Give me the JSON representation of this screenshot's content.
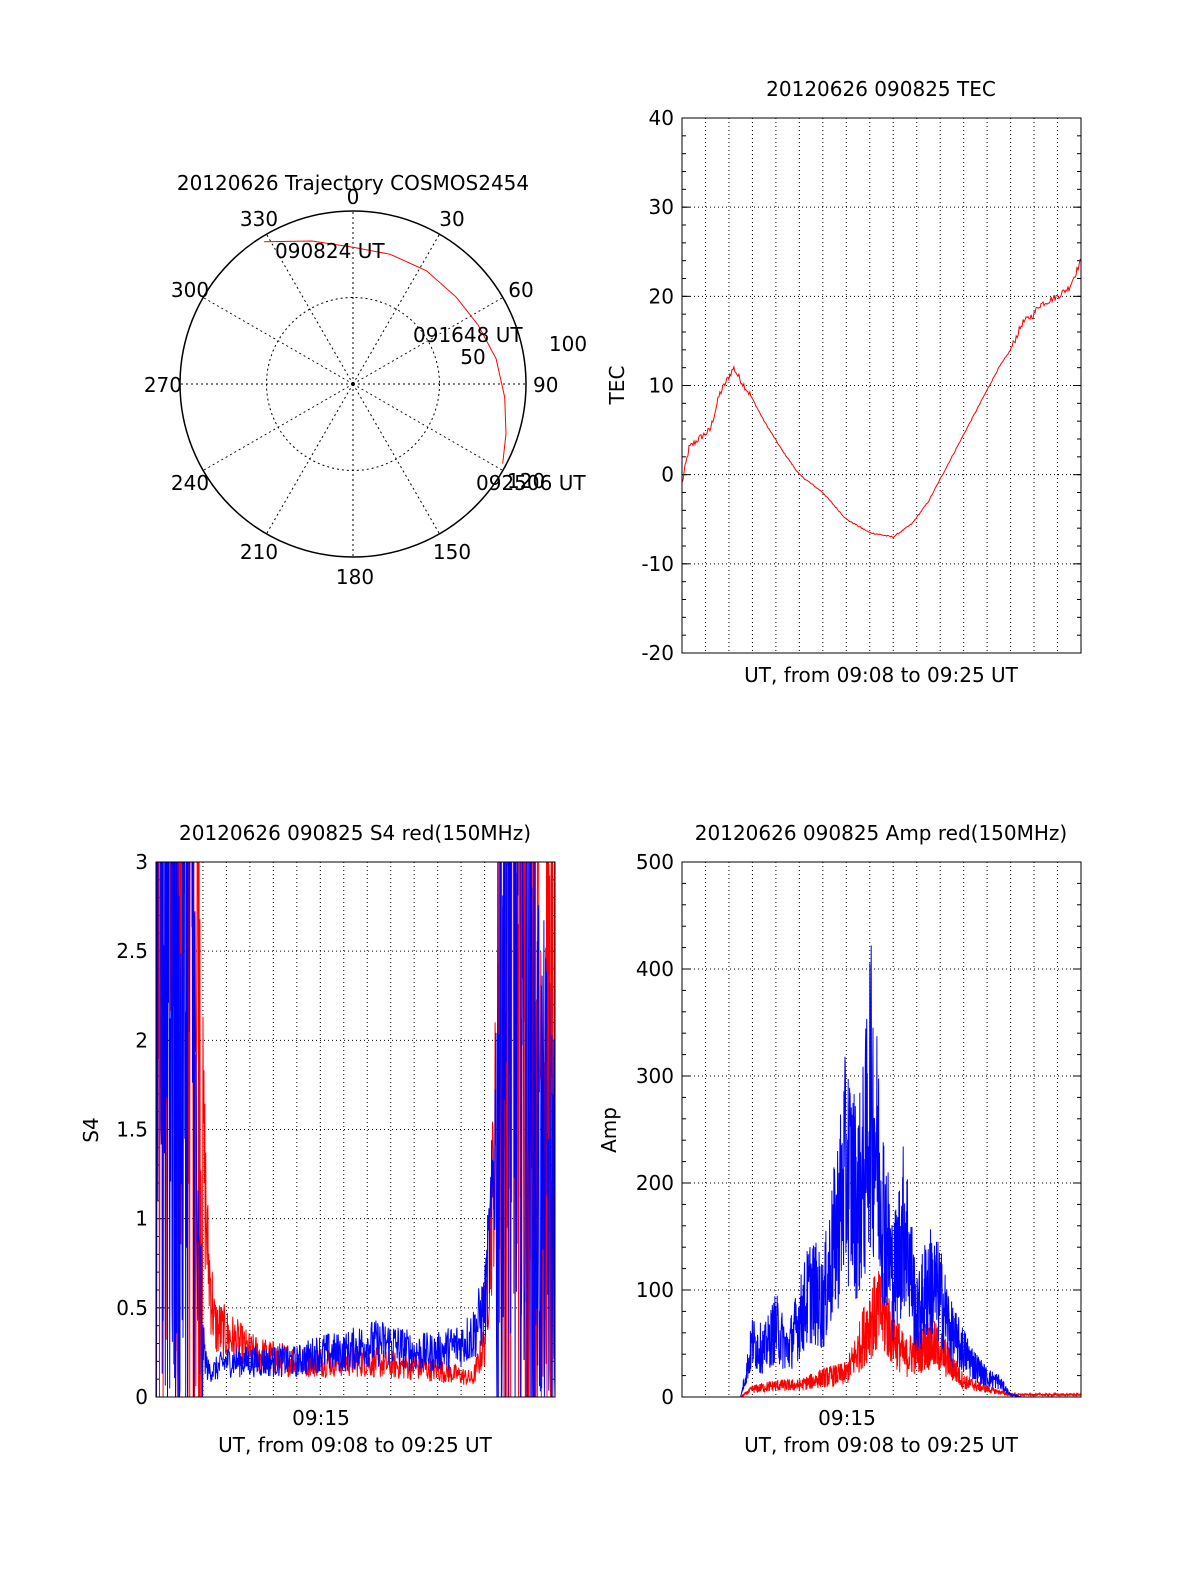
{
  "chart_data": [
    {
      "type": "polar",
      "title": "20120626 Trajectory COSMOS2454",
      "azimuth_labels": [
        "0",
        "30",
        "60",
        "90",
        "150",
        "180",
        "210",
        "240",
        "270",
        "300",
        "330"
      ],
      "radius_labels": [
        "50",
        "100"
      ],
      "rlim": [
        0,
        100
      ],
      "grid": true,
      "series": [
        {
          "color": "#ff0000",
          "points": [
            {
              "az": -32,
              "r": 97
            },
            {
              "az": -16,
              "r": 86
            },
            {
              "az": 0,
              "r": 79
            },
            {
              "az": 16,
              "r": 78
            },
            {
              "az": 33,
              "r": 78
            },
            {
              "az": 50,
              "r": 78
            },
            {
              "az": 65,
              "r": 80
            },
            {
              "az": 80,
              "r": 84
            },
            {
              "az": 95,
              "r": 88
            },
            {
              "az": 108,
              "r": 93
            },
            {
              "az": 118,
              "r": 98
            }
          ]
        }
      ],
      "annotations": [
        "090824 UT",
        "091648 UT",
        "092506 UT",
        "120"
      ]
    },
    {
      "type": "line",
      "title": "20120626 090825 TEC",
      "xlabel": "UT, from 09:08 to 09:25 UT",
      "ylabel": "TEC",
      "ylim": [
        -20,
        40
      ],
      "yticks": [
        "-20",
        "-10",
        "0",
        "10",
        "20",
        "30",
        "40"
      ],
      "grid": true,
      "series": [
        {
          "color": "#ff0000",
          "x": [
            0,
            0.3,
            0.7,
            1.2,
            1.6,
            2.0,
            2.2,
            2.4,
            2.9,
            3.5,
            4.2,
            5.0,
            6.0,
            7.0,
            8.0,
            9.0,
            9.8,
            10.5,
            11.0,
            11.5,
            12.0,
            12.5,
            13.0,
            13.5,
            14.0,
            14.5,
            15.0,
            15.2,
            15.6,
            16.0,
            16.5,
            17.0
          ],
          "y": [
            -1,
            3,
            4,
            5,
            9,
            11,
            12,
            11,
            9,
            6,
            3,
            0,
            -2,
            -5,
            -6.5,
            -7,
            -5.5,
            -3,
            -0.5,
            2,
            4.5,
            7,
            9.5,
            12,
            14,
            17,
            18,
            19,
            19.5,
            20,
            21,
            24
          ]
        }
      ]
    },
    {
      "type": "line",
      "title": "20120626 090825 S4 red(150MHz)",
      "xlabel": "UT, from 09:08 to 09:25 UT",
      "ylabel": "S4",
      "ylim": [
        0,
        3
      ],
      "yticks": [
        "0",
        "0.5",
        "1",
        "1.5",
        "2",
        "2.5",
        "3"
      ],
      "xtick_labels": [
        "09:15"
      ],
      "grid": true,
      "series": [
        {
          "color": "#ff0000",
          "x": [
            0,
            0.5,
            1.0,
            1.5,
            1.8,
            2.0,
            2.2,
            2.5,
            3.0,
            3.5,
            4.0,
            5.0,
            6.0,
            7.0,
            8.0,
            9.0,
            10.0,
            11.0,
            12.0,
            13.0,
            13.5,
            14.0,
            14.3,
            14.6,
            15.0,
            15.5,
            16.0,
            16.5,
            17.0
          ],
          "y": [
            3,
            3,
            3,
            3,
            2.5,
            1.5,
            0.8,
            0.4,
            0.35,
            0.3,
            0.25,
            0.22,
            0.2,
            0.2,
            0.2,
            0.2,
            0.18,
            0.17,
            0.15,
            0.12,
            0.1,
            0.3,
            1.0,
            2.0,
            2.8,
            3,
            2.6,
            2.0,
            1.5
          ]
        },
        {
          "color": "#0000ff",
          "x": [
            0,
            0.5,
            1.0,
            1.5,
            1.8,
            2.0,
            2.2,
            2.5,
            3.0,
            3.5,
            4.0,
            5.0,
            6.0,
            7.0,
            8.0,
            9.0,
            10.0,
            11.0,
            12.0,
            13.0,
            13.5,
            14.0,
            14.3,
            14.6,
            15.0,
            15.5,
            16.0,
            16.5,
            17.0
          ],
          "y": [
            2.5,
            3,
            1.5,
            3,
            0.5,
            0.3,
            0.15,
            0.15,
            0.2,
            0.2,
            0.2,
            0.2,
            0.2,
            0.25,
            0.25,
            0.3,
            0.3,
            0.25,
            0.25,
            0.3,
            0.35,
            0.5,
            1.0,
            2.0,
            2.5,
            2.0,
            1.6,
            1.2,
            1.0
          ]
        }
      ]
    },
    {
      "type": "line",
      "title": "20120626 090825 Amp red(150MHz)",
      "xlabel": "UT, from 09:08 to 09:25 UT",
      "ylabel": "Amp",
      "ylim": [
        0,
        500
      ],
      "yticks": [
        "0",
        "100",
        "200",
        "300",
        "400",
        "500"
      ],
      "xtick_labels": [
        "09:15"
      ],
      "grid": true,
      "series": [
        {
          "color": "#ff0000",
          "x": [
            0,
            2.5,
            3.0,
            4.0,
            5.0,
            6.0,
            7.0,
            7.5,
            8.0,
            8.5,
            9.0,
            9.5,
            10.0,
            10.5,
            11.0,
            11.5,
            12.0,
            13.0,
            14.0,
            17.0
          ],
          "y": [
            0,
            0,
            10,
            15,
            15,
            25,
            30,
            60,
            100,
            110,
            80,
            50,
            60,
            70,
            60,
            40,
            20,
            10,
            3,
            3
          ]
        },
        {
          "color": "#0000ff",
          "x": [
            0,
            2.5,
            2.8,
            3.0,
            3.5,
            4.0,
            4.5,
            5.0,
            5.5,
            6.0,
            6.5,
            7.0,
            7.5,
            7.8,
            8.0,
            8.2,
            8.5,
            9.0,
            9.5,
            10.0,
            10.5,
            11.0,
            11.5,
            12.0,
            12.5,
            13.0,
            13.5,
            14.0,
            14.5,
            17.0
          ],
          "y": [
            0,
            0,
            40,
            70,
            60,
            90,
            60,
            100,
            140,
            120,
            200,
            300,
            250,
            300,
            400,
            350,
            260,
            150,
            230,
            100,
            150,
            130,
            80,
            60,
            40,
            25,
            20,
            3,
            0,
            0
          ]
        }
      ]
    }
  ]
}
